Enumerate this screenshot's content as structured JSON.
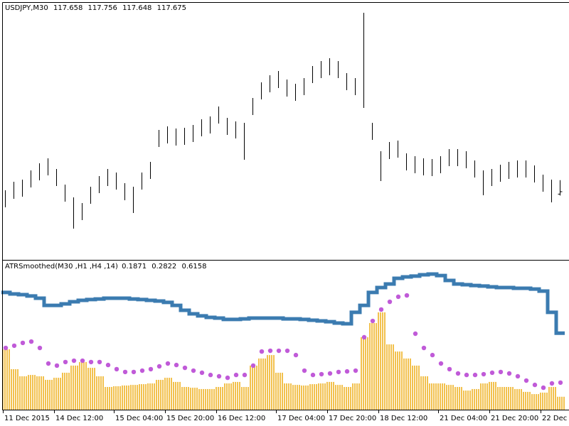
{
  "chart_data": [
    {
      "type": "ohlc",
      "title": "USDJPY,M30",
      "color": "#000000",
      "high": [
        117.685,
        117.745,
        117.76,
        117.825,
        117.875,
        117.91,
        117.835,
        117.725,
        117.635,
        117.595,
        117.71,
        117.785,
        117.835,
        117.81,
        117.735,
        117.71,
        117.81,
        117.885,
        118.11,
        118.135,
        118.12,
        118.125,
        118.145,
        118.185,
        118.205,
        118.275,
        118.195,
        118.17,
        118.16,
        118.335,
        118.445,
        118.495,
        118.525,
        118.465,
        118.435,
        118.475,
        118.56,
        118.595,
        118.615,
        118.595,
        118.51,
        118.475,
        118.935,
        118.16,
        117.96,
        118.025,
        118.035,
        117.945,
        117.925,
        117.91,
        117.905,
        117.925,
        117.975,
        117.975,
        117.96,
        117.895,
        117.825,
        117.835,
        117.865,
        117.885,
        117.895,
        117.895,
        117.86,
        117.795,
        117.76,
        117.756
      ],
      "low": [
        117.565,
        117.625,
        117.64,
        117.705,
        117.755,
        117.79,
        117.715,
        117.605,
        117.415,
        117.475,
        117.59,
        117.665,
        117.715,
        117.69,
        117.615,
        117.525,
        117.69,
        117.765,
        117.99,
        118.015,
        118.0,
        118.005,
        118.025,
        118.065,
        118.085,
        118.155,
        118.075,
        118.05,
        117.9,
        118.215,
        118.325,
        118.375,
        118.405,
        118.345,
        118.315,
        118.355,
        118.44,
        118.475,
        118.495,
        118.475,
        118.39,
        118.355,
        118.265,
        118.04,
        117.75,
        117.905,
        117.915,
        117.825,
        117.805,
        117.79,
        117.785,
        117.805,
        117.855,
        117.855,
        117.84,
        117.775,
        117.65,
        117.715,
        117.745,
        117.765,
        117.775,
        117.775,
        117.74,
        117.675,
        117.6,
        117.648
      ],
      "last_open": 117.658,
      "last_close": 117.675,
      "ylim": [
        117.2,
        119.0
      ]
    },
    {
      "type": "indicator",
      "title": "ATRSmoothed(M30 ,H1 ,H4 ,14)",
      "categories": [
        "11 Dec 2015",
        null,
        null,
        null,
        null,
        null,
        "14 Dec 12:00",
        null,
        null,
        null,
        null,
        null,
        null,
        "15 Dec 04:00",
        null,
        null,
        null,
        null,
        null,
        "15 Dec 20:00",
        null,
        null,
        null,
        null,
        null,
        "16 Dec 12:00",
        null,
        null,
        null,
        null,
        null,
        null,
        "17 Dec 04:00",
        null,
        null,
        null,
        null,
        null,
        "17 Dec 20:00",
        null,
        null,
        null,
        null,
        null,
        "18 Dec 12:00",
        null,
        null,
        null,
        null,
        null,
        null,
        "21 Dec 04:00",
        null,
        null,
        null,
        null,
        null,
        "21 Dec 20:00",
        null,
        null,
        null,
        null,
        null,
        "22 Dec",
        null,
        null
      ],
      "series": [
        {
          "style": "histogram",
          "color": "#f2c14e",
          "values": [
            0.507,
            0.373,
            0.325,
            0.334,
            0.325,
            0.301,
            0.315,
            0.349,
            0.397,
            0.421,
            0.382,
            0.325,
            0.253,
            0.258,
            0.263,
            0.267,
            0.272,
            0.277,
            0.301,
            0.315,
            0.287,
            0.253,
            0.248,
            0.239,
            0.239,
            0.253,
            0.277,
            0.287,
            0.253,
            0.397,
            0.445,
            0.468,
            0.349,
            0.277,
            0.267,
            0.263,
            0.272,
            0.277,
            0.287,
            0.267,
            0.253,
            0.277,
            0.588,
            0.684,
            0.756,
            0.54,
            0.492,
            0.445,
            0.397,
            0.325,
            0.277,
            0.277,
            0.267,
            0.253,
            0.229,
            0.239,
            0.277,
            0.287,
            0.253,
            0.253,
            0.239,
            0.22,
            0.205,
            0.215,
            0.253,
            0.1871
          ]
        },
        {
          "style": "dots",
          "color": "#c05ad8",
          "values": [
            0.516,
            0.531,
            0.55,
            0.559,
            0.516,
            0.411,
            0.397,
            0.421,
            0.43,
            0.43,
            0.421,
            0.421,
            0.401,
            0.373,
            0.354,
            0.354,
            0.363,
            0.373,
            0.392,
            0.411,
            0.401,
            0.382,
            0.363,
            0.349,
            0.334,
            0.325,
            0.315,
            0.334,
            0.334,
            0.397,
            0.492,
            0.497,
            0.497,
            0.497,
            0.468,
            0.363,
            0.334,
            0.339,
            0.344,
            0.354,
            0.358,
            0.363,
            0.588,
            0.698,
            0.775,
            0.827,
            0.861,
            0.87,
            0.612,
            0.516,
            0.468,
            0.411,
            0.373,
            0.344,
            0.334,
            0.334,
            0.339,
            0.349,
            0.354,
            0.344,
            0.325,
            0.296,
            0.267,
            0.248,
            0.277,
            0.2822
          ]
        },
        {
          "style": "step",
          "color": "#3b7bb0",
          "values": [
            0.89,
            0.88,
            0.875,
            0.866,
            0.851,
            0.803,
            0.803,
            0.813,
            0.827,
            0.837,
            0.842,
            0.846,
            0.851,
            0.851,
            0.851,
            0.846,
            0.842,
            0.837,
            0.832,
            0.823,
            0.803,
            0.77,
            0.746,
            0.732,
            0.722,
            0.717,
            0.708,
            0.708,
            0.712,
            0.717,
            0.717,
            0.717,
            0.717,
            0.712,
            0.712,
            0.708,
            0.703,
            0.698,
            0.693,
            0.684,
            0.679,
            0.756,
            0.803,
            0.89,
            0.923,
            0.947,
            0.985,
            0.995,
            1.0,
            1.009,
            1.014,
            1.004,
            0.971,
            0.947,
            0.942,
            0.937,
            0.933,
            0.928,
            0.923,
            0.923,
            0.918,
            0.918,
            0.913,
            0.899,
            0.756,
            0.6158
          ]
        }
      ],
      "ylim": [
        0.1,
        1.1
      ]
    }
  ]
}
